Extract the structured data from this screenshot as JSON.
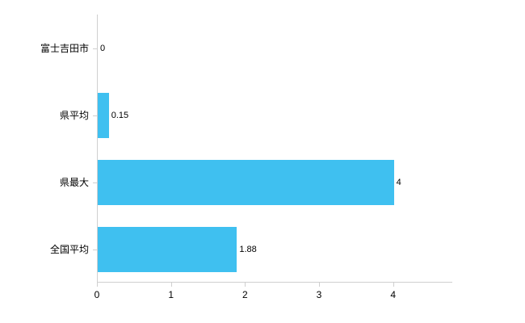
{
  "chart_data": {
    "type": "bar",
    "orientation": "horizontal",
    "title": "",
    "xlabel": "",
    "ylabel": "",
    "categories": [
      "富士吉田市",
      "県平均",
      "県最大",
      "全国平均"
    ],
    "values": [
      0,
      0.15,
      4,
      1.88
    ],
    "value_labels": [
      "0",
      "0.15",
      "4",
      "1.88"
    ],
    "x_ticks": [
      0,
      1,
      2,
      3,
      4
    ],
    "xlim": [
      0,
      4.8
    ],
    "grid": false,
    "legend": "none",
    "bar_color": "#3fc0f0",
    "axis_color": "#cfcfcf",
    "text_color": "#000000"
  }
}
